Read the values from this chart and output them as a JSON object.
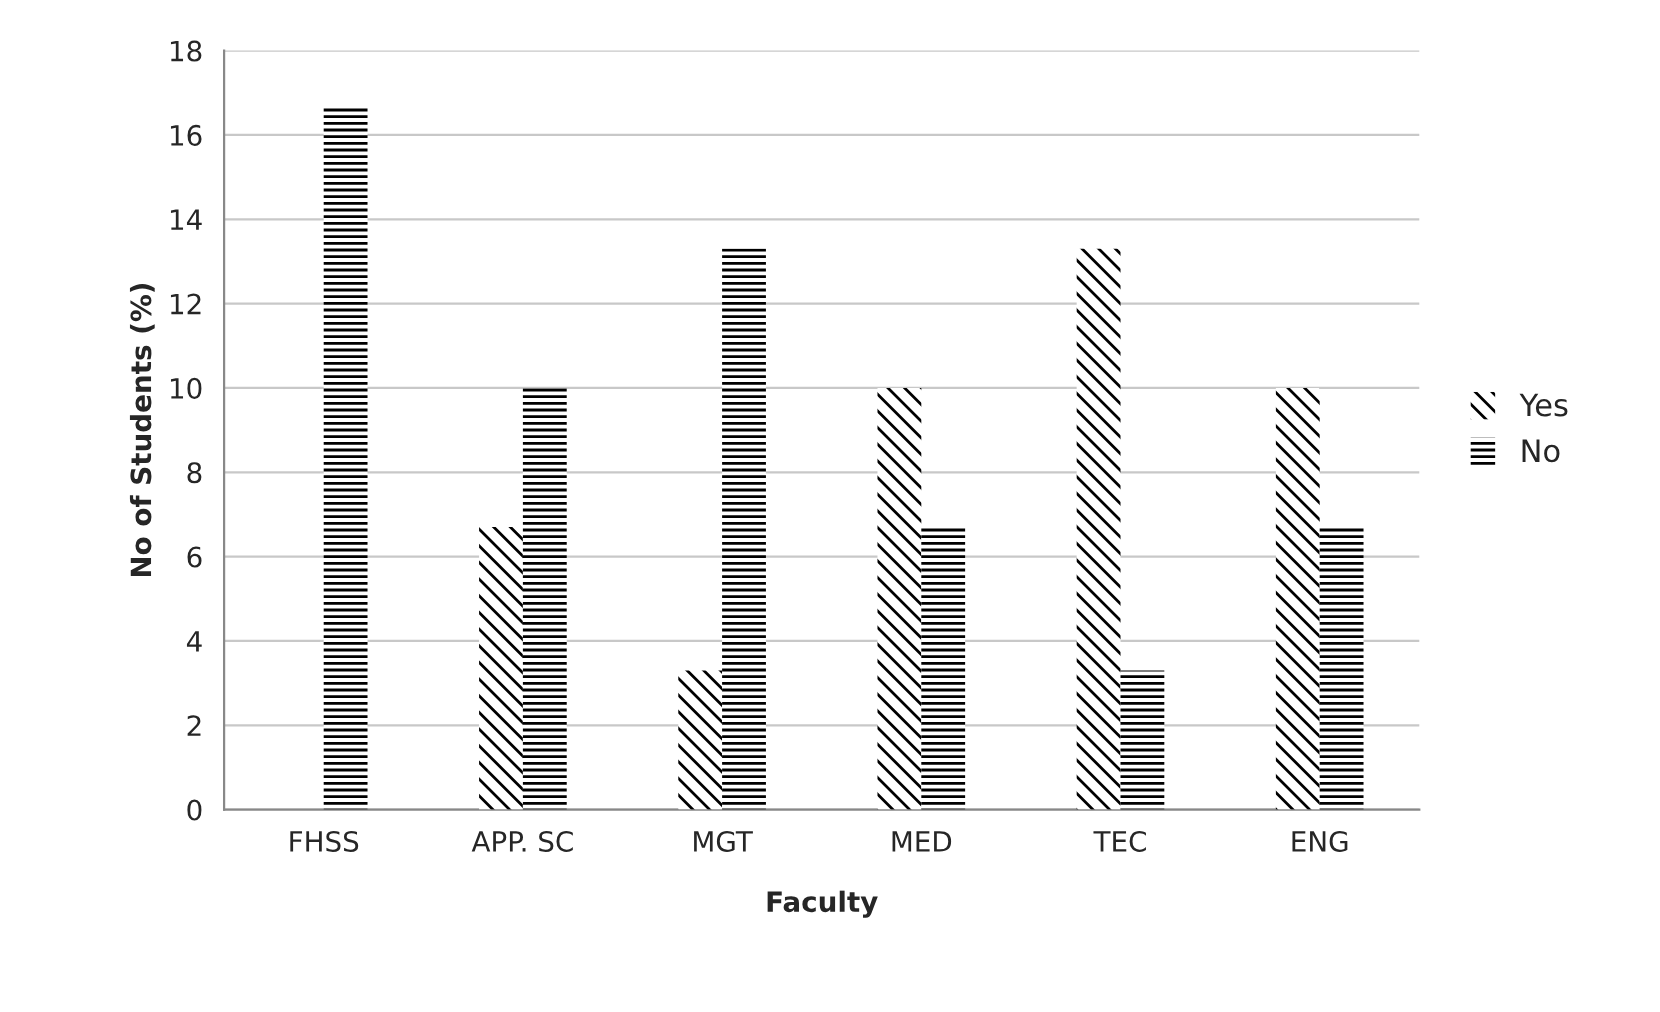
{
  "chart_data": {
    "type": "bar",
    "xlabel": "Faculty",
    "ylabel": "No of Students (%)",
    "categories": [
      "FHSS",
      "APP. SC",
      "MGT",
      "MED",
      "TEC",
      "ENG"
    ],
    "series": [
      {
        "name": "Yes",
        "color": "#000000",
        "values": [
          0,
          6.7,
          3.3,
          10,
          13.3,
          10
        ]
      },
      {
        "name": "No",
        "color": "#000000",
        "values": [
          16.7,
          10,
          13.3,
          6.7,
          3.3,
          6.7
        ]
      }
    ],
    "ylim": [
      0,
      18
    ],
    "yticks": [
      0,
      2,
      4,
      6,
      8,
      10,
      12,
      14,
      16,
      18
    ],
    "grid": "y",
    "legend": "right"
  }
}
